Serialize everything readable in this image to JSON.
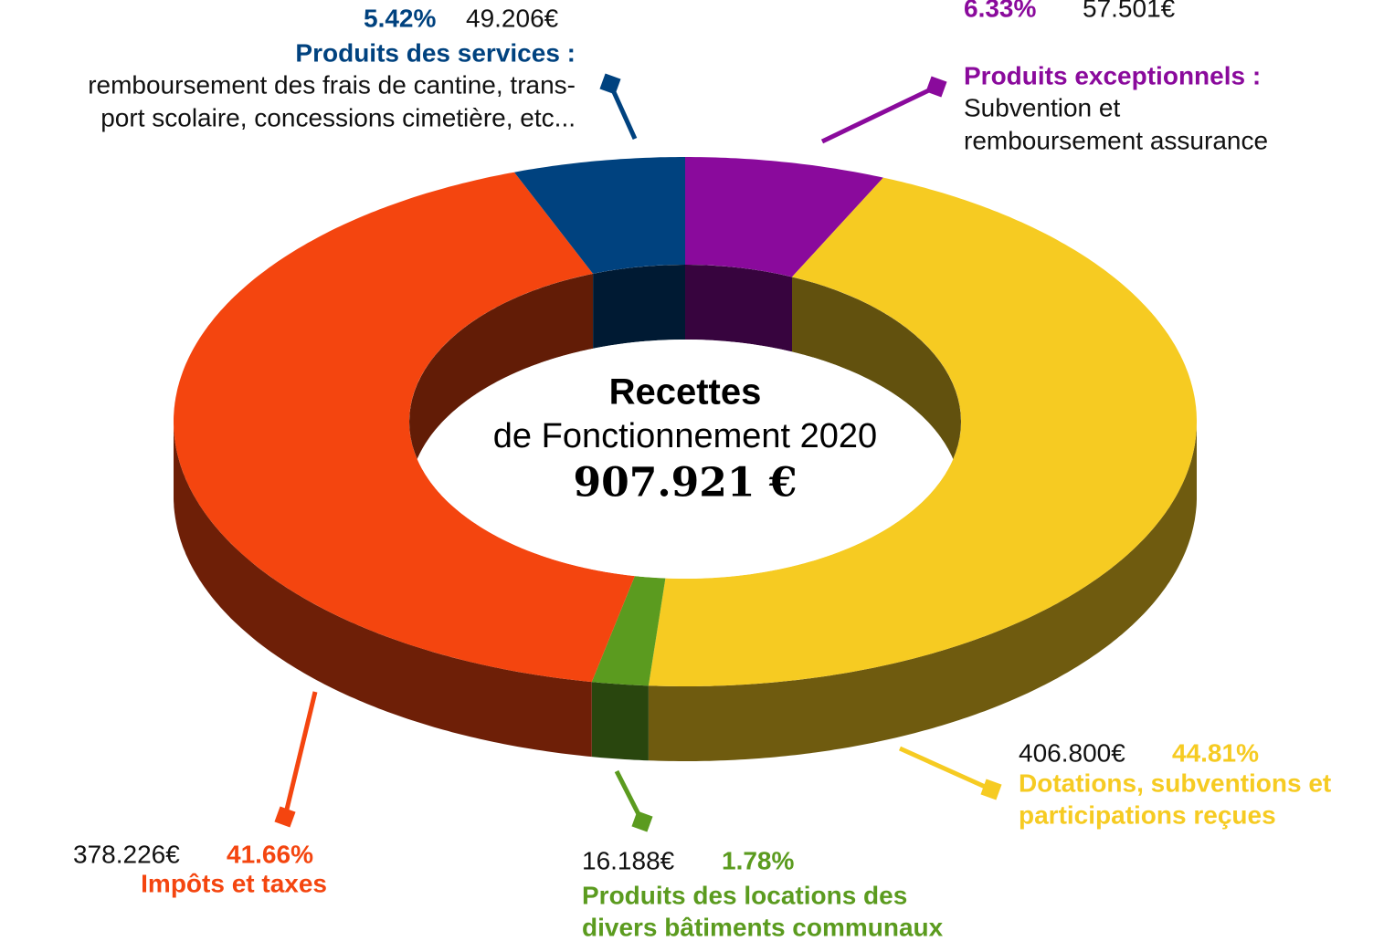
{
  "chart_data": {
    "type": "pie",
    "donut": true,
    "center_title": [
      "Recettes",
      "de Fonctionnement 2020"
    ],
    "total_label": "907.921 €",
    "categories": [
      [
        "Produits exceptionnels :"
      ],
      [
        "Dotations, subventions et",
        "participations reçues"
      ],
      [
        "Produits des locations des",
        "divers bâtiments communaux"
      ],
      [
        "Impôts et taxes"
      ],
      [
        "Produits des services :"
      ]
    ],
    "descriptions": [
      [
        "Subvention et",
        "remboursement assurance"
      ],
      [],
      [],
      [],
      [
        "remboursement des frais de cantine, trans-",
        "port scolaire, concessions cimetière, etc..."
      ]
    ],
    "values": [
      6.33,
      44.81,
      1.78,
      41.66,
      5.42
    ],
    "value_labels": [
      "6.33%",
      "44.81%",
      "1.78%",
      "41.66%",
      "5.42%"
    ],
    "amount_labels": [
      "57.501€",
      "406.800€",
      "16.188€",
      "378.226€",
      "49.206€"
    ],
    "colors": [
      "#8a0a9c",
      "#f6cb22",
      "#5b9b1f",
      "#f4450f",
      "#00427f"
    ]
  }
}
